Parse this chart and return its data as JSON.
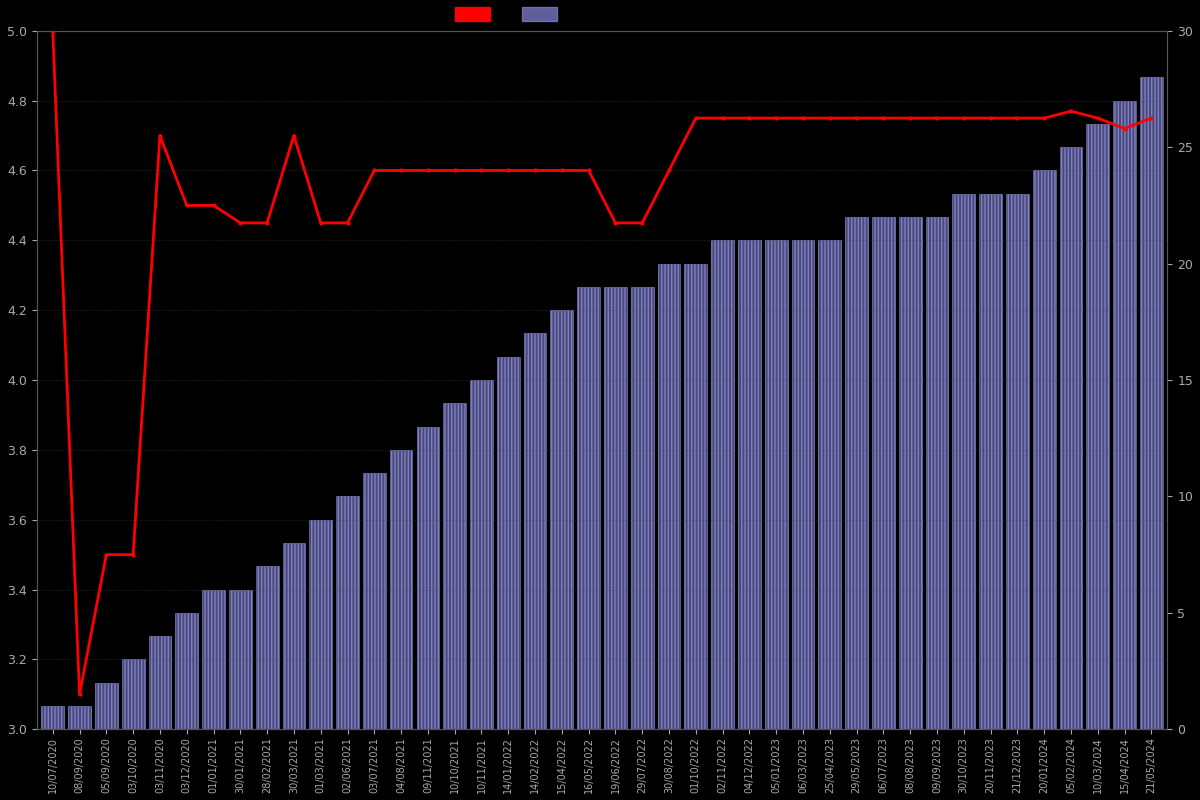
{
  "background_color": "#000000",
  "ylim_left": [
    3.0,
    5.0
  ],
  "ylim_right": [
    0,
    30
  ],
  "yticks_left": [
    3.0,
    3.2,
    3.4,
    3.6,
    3.8,
    4.0,
    4.2,
    4.4,
    4.6,
    4.8,
    5.0
  ],
  "yticks_right": [
    0,
    5,
    10,
    15,
    20,
    25,
    30
  ],
  "bar_color": "#8888dd",
  "line_color": "#ff0000",
  "text_color": "#aaaaaa",
  "dates": [
    "10/07/2020",
    "08/09/2020",
    "05/09/2020",
    "03/10/2020",
    "03/11/2020",
    "03/12/2020",
    "01/01/2021",
    "30/01/2021",
    "28/02/2021",
    "30/03/2021",
    "01/03/2021",
    "02/06/2021",
    "03/07/2021",
    "04/08/2021",
    "09/11/2021",
    "10/10/2021",
    "10/11/2021",
    "14/01/2022",
    "14/02/2022",
    "15/04/2022",
    "16/05/2022",
    "19/06/2022",
    "29/07/2022",
    "30/08/2022",
    "01/10/2022",
    "02/11/2022",
    "04/12/2022",
    "05/01/2023",
    "06/03/2023",
    "25/04/2023",
    "29/05/2023",
    "06/07/2023",
    "08/08/2023",
    "09/09/2023",
    "30/10/2023",
    "20/11/2023",
    "21/12/2023",
    "20/01/2024",
    "05/02/2024",
    "10/03/2024",
    "15/04/2024",
    "21/05/2024"
  ],
  "counts": [
    1,
    1,
    2,
    3,
    4,
    5,
    6,
    6,
    7,
    8,
    9,
    10,
    11,
    12,
    13,
    14,
    15,
    16,
    17,
    18,
    19,
    19,
    19,
    20,
    20,
    21,
    21,
    21,
    21,
    21,
    22,
    22,
    22,
    22,
    23,
    23,
    23,
    24,
    25,
    26,
    27,
    28
  ],
  "avg_ratings": [
    5.0,
    3.1,
    3.5,
    3.5,
    4.7,
    4.5,
    4.5,
    4.45,
    4.45,
    4.7,
    4.45,
    4.45,
    4.6,
    4.6,
    4.6,
    4.6,
    4.6,
    4.6,
    4.6,
    4.6,
    4.6,
    4.45,
    4.45,
    4.6,
    4.75,
    4.75,
    4.75,
    4.75,
    4.75,
    4.75,
    4.75,
    4.75,
    4.75,
    4.75,
    4.75,
    4.75,
    4.75,
    4.75,
    4.77,
    4.75,
    4.72,
    4.75
  ]
}
